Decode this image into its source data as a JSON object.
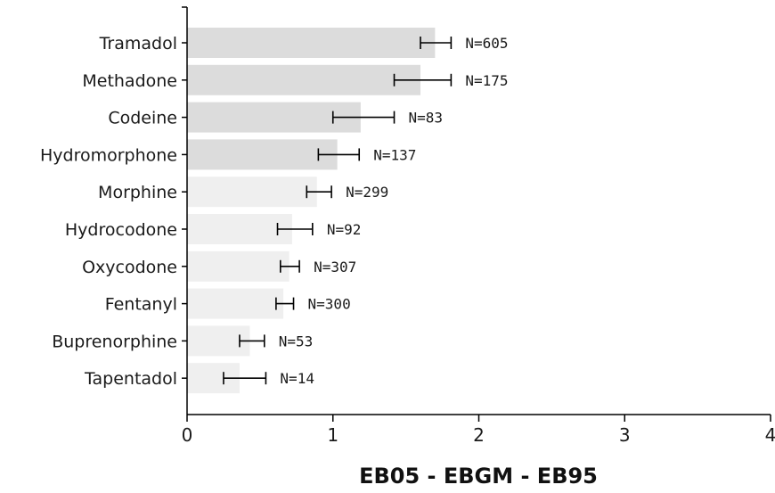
{
  "chart_data": {
    "type": "bar",
    "orientation": "horizontal",
    "title": "",
    "xlabel": "EB05 - EBGM - EB95",
    "ylabel": "",
    "xlim": [
      0,
      4
    ],
    "xticks": [
      "0",
      "1",
      "2",
      "3",
      "4"
    ],
    "grid": false,
    "categories": [
      "Tramadol",
      "Methadone",
      "Codeine",
      "Hydromorphone",
      "Morphine",
      "Hydrocodone",
      "Oxycodone",
      "Fentanyl",
      "Buprenorphine",
      "Tapentadol"
    ],
    "ebgm": [
      1.7,
      1.6,
      1.19,
      1.03,
      0.89,
      0.72,
      0.7,
      0.66,
      0.43,
      0.36
    ],
    "eb05": [
      1.6,
      1.42,
      1.0,
      0.9,
      0.82,
      0.62,
      0.64,
      0.61,
      0.36,
      0.25
    ],
    "eb95": [
      1.81,
      1.81,
      1.42,
      1.18,
      0.99,
      0.86,
      0.77,
      0.73,
      0.53,
      0.54
    ],
    "n_labels": [
      "N=605",
      "N=175",
      "N=83",
      "N=137",
      "N=299",
      "N=92",
      "N=307",
      "N=300",
      "N=53",
      "N=14"
    ],
    "bar_shading": [
      "dark",
      "dark",
      "dark",
      "dark",
      "light",
      "light",
      "light",
      "light",
      "light",
      "light"
    ],
    "colors": {
      "dark": "#dcdcdc",
      "light": "#efefef",
      "axis": "#000000"
    }
  }
}
